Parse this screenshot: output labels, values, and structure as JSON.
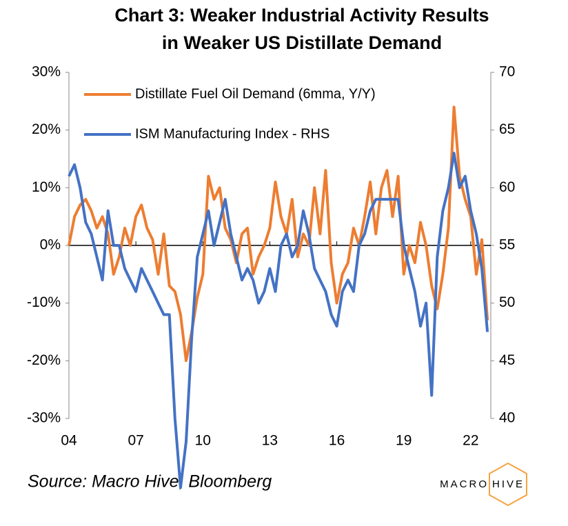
{
  "chart_data": {
    "type": "line",
    "title": [
      "Chart 3: Weaker Industrial Activity Results",
      "in Weaker US Distillate Demand"
    ],
    "source": "Source: Macro Hive, Bloomberg",
    "logo": [
      "MACRO",
      "HIVE"
    ],
    "x": [
      2004,
      2004.25,
      2004.5,
      2004.75,
      2005,
      2005.25,
      2005.5,
      2005.75,
      2006,
      2006.25,
      2006.5,
      2006.75,
      2007,
      2007.25,
      2007.5,
      2007.75,
      2008,
      2008.25,
      2008.5,
      2008.75,
      2009,
      2009.25,
      2009.5,
      2009.75,
      2010,
      2010.25,
      2010.5,
      2010.75,
      2011,
      2011.25,
      2011.5,
      2011.75,
      2012,
      2012.25,
      2012.5,
      2012.75,
      2013,
      2013.25,
      2013.5,
      2013.75,
      2014,
      2014.25,
      2014.5,
      2014.75,
      2015,
      2015.25,
      2015.5,
      2015.75,
      2016,
      2016.25,
      2016.5,
      2016.75,
      2017,
      2017.25,
      2017.5,
      2017.75,
      2018,
      2018.25,
      2018.5,
      2018.75,
      2019,
      2019.25,
      2019.5,
      2019.75,
      2020,
      2020.25,
      2020.5,
      2020.75,
      2021,
      2021.25,
      2021.5,
      2021.75,
      2022,
      2022.25,
      2022.5,
      2022.75
    ],
    "series": [
      {
        "name": "Distillate Fuel Oil Demand (6mma, Y/Y)",
        "color": "#ed7d31",
        "axis": "y",
        "values": [
          0,
          5,
          7,
          8,
          6,
          3,
          5,
          2,
          -5,
          -2,
          3,
          0,
          5,
          7,
          3,
          1,
          -5,
          2,
          -7,
          -8,
          -12,
          -20,
          -15,
          -9,
          -5,
          12,
          8,
          10,
          3,
          1,
          -3,
          2,
          3,
          -5,
          -2,
          0,
          3,
          11,
          5,
          2,
          8,
          -2,
          2,
          0,
          10,
          2,
          13,
          -3,
          -10,
          -5,
          -3,
          3,
          0,
          5,
          11,
          2,
          10,
          13,
          5,
          12,
          -5,
          0,
          -3,
          4,
          0,
          -7,
          -11,
          -5,
          3,
          24,
          12,
          8,
          5,
          -5,
          1,
          -13
        ]
      },
      {
        "name": "ISM Manufacturing Index - RHS",
        "color": "#4472c4",
        "axis": "y2",
        "values": [
          61,
          62,
          60,
          57,
          56,
          54,
          52,
          58,
          55,
          55,
          53,
          52,
          51,
          53,
          52,
          51,
          50,
          49,
          49,
          40,
          34,
          38,
          47,
          54,
          56,
          58,
          55,
          57,
          59,
          56,
          54,
          52,
          53,
          52,
          50,
          51,
          53,
          51,
          55,
          56,
          54,
          55,
          58,
          56,
          53,
          52,
          51,
          49,
          48,
          51,
          52,
          51,
          55,
          56,
          58,
          59,
          59,
          59,
          59,
          59,
          55,
          53,
          51,
          48,
          50,
          42,
          54,
          58,
          60,
          63,
          60,
          61,
          58,
          56,
          53,
          47.5
        ]
      }
    ],
    "xlim": [
      2004,
      2022.9
    ],
    "xticks": [
      {
        "value": 2004,
        "label": "04"
      },
      {
        "value": 2007,
        "label": "07"
      },
      {
        "value": 2010,
        "label": "10"
      },
      {
        "value": 2013,
        "label": "13"
      },
      {
        "value": 2016,
        "label": "16"
      },
      {
        "value": 2019,
        "label": "19"
      },
      {
        "value": 2022,
        "label": "22"
      }
    ],
    "ylim": [
      -30,
      30
    ],
    "yticks": [
      {
        "value": -30,
        "label": "-30%"
      },
      {
        "value": -20,
        "label": "-20%"
      },
      {
        "value": -10,
        "label": "-10%"
      },
      {
        "value": 0,
        "label": "0%"
      },
      {
        "value": 10,
        "label": "10%"
      },
      {
        "value": 20,
        "label": "20%"
      },
      {
        "value": 30,
        "label": "30%"
      }
    ],
    "y2lim": [
      40,
      70
    ],
    "y2ticks": [
      40,
      45,
      50,
      55,
      60,
      65,
      70
    ],
    "grid": false,
    "legend": "upper left"
  }
}
